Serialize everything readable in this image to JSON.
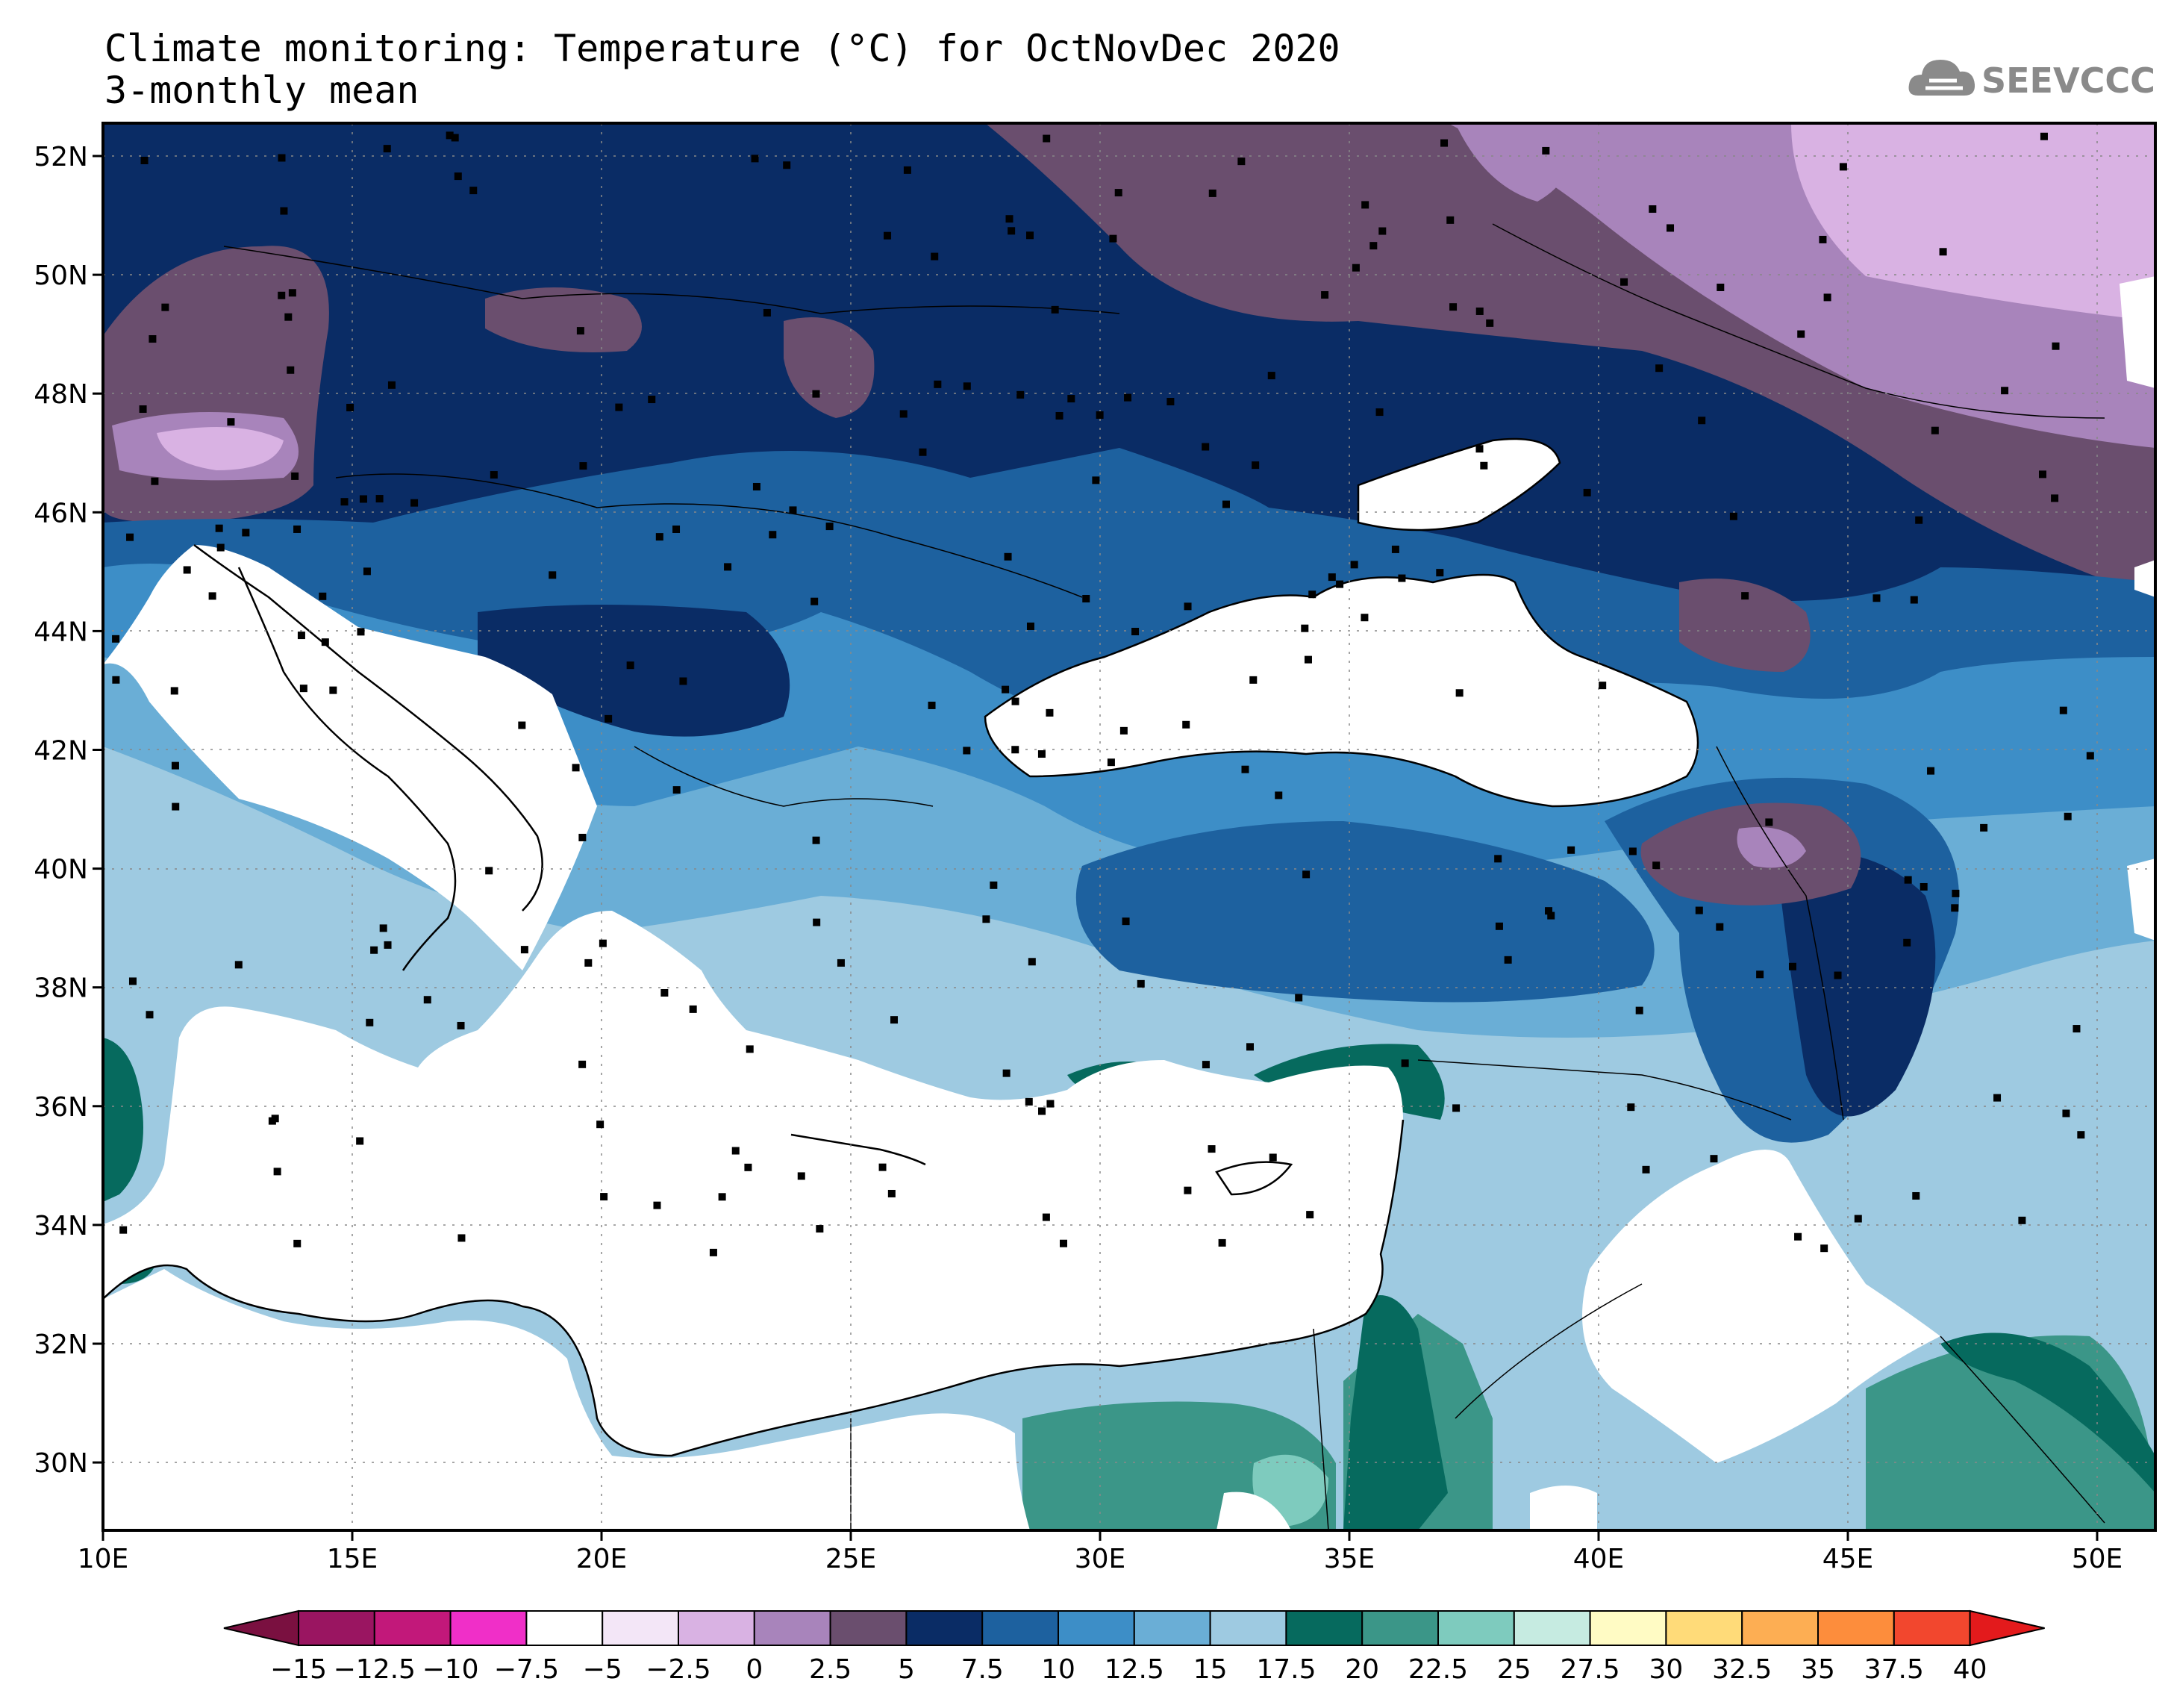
{
  "title": "Climate monitoring: Temperature (°C) for OctNovDec 2020",
  "subtitle": "3-monthly mean",
  "logo": {
    "text": "SEEVCCC",
    "icon": "cloud-icon"
  },
  "map": {
    "lat_labels": [
      "52N",
      "50N",
      "48N",
      "46N",
      "44N",
      "42N",
      "40N",
      "38N",
      "36N",
      "34N",
      "32N",
      "30N"
    ],
    "lon_labels": [
      "10E",
      "15E",
      "20E",
      "25E",
      "30E",
      "35E",
      "40E",
      "45E",
      "50E"
    ]
  },
  "colorbar": {
    "labels": [
      "−15",
      "−12.5",
      "−10",
      "−7.5",
      "−5",
      "−2.5",
      "0",
      "2.5",
      "5",
      "7.5",
      "10",
      "12.5",
      "15",
      "17.5",
      "20",
      "22.5",
      "25",
      "27.5",
      "30",
      "32.5",
      "35",
      "37.5",
      "40"
    ],
    "colors": [
      "#9a1561",
      "#c2187a",
      "#f02fc8",
      "#ffffff",
      "#f3e6f7",
      "#d9b2e3",
      "#a884bb",
      "#6a4e6e",
      "#0a2c65",
      "#1d619f",
      "#3d8ec7",
      "#6aaed6",
      "#9ecae1",
      "#066a5e",
      "#3b9688",
      "#7ecbbe",
      "#c6ebe1",
      "#fffbc4",
      "#ffdb79",
      "#fdae53",
      "#fd8d3c",
      "#f2472e"
    ],
    "low_color": "#7a1040",
    "high_color": "#e31a1c"
  }
}
